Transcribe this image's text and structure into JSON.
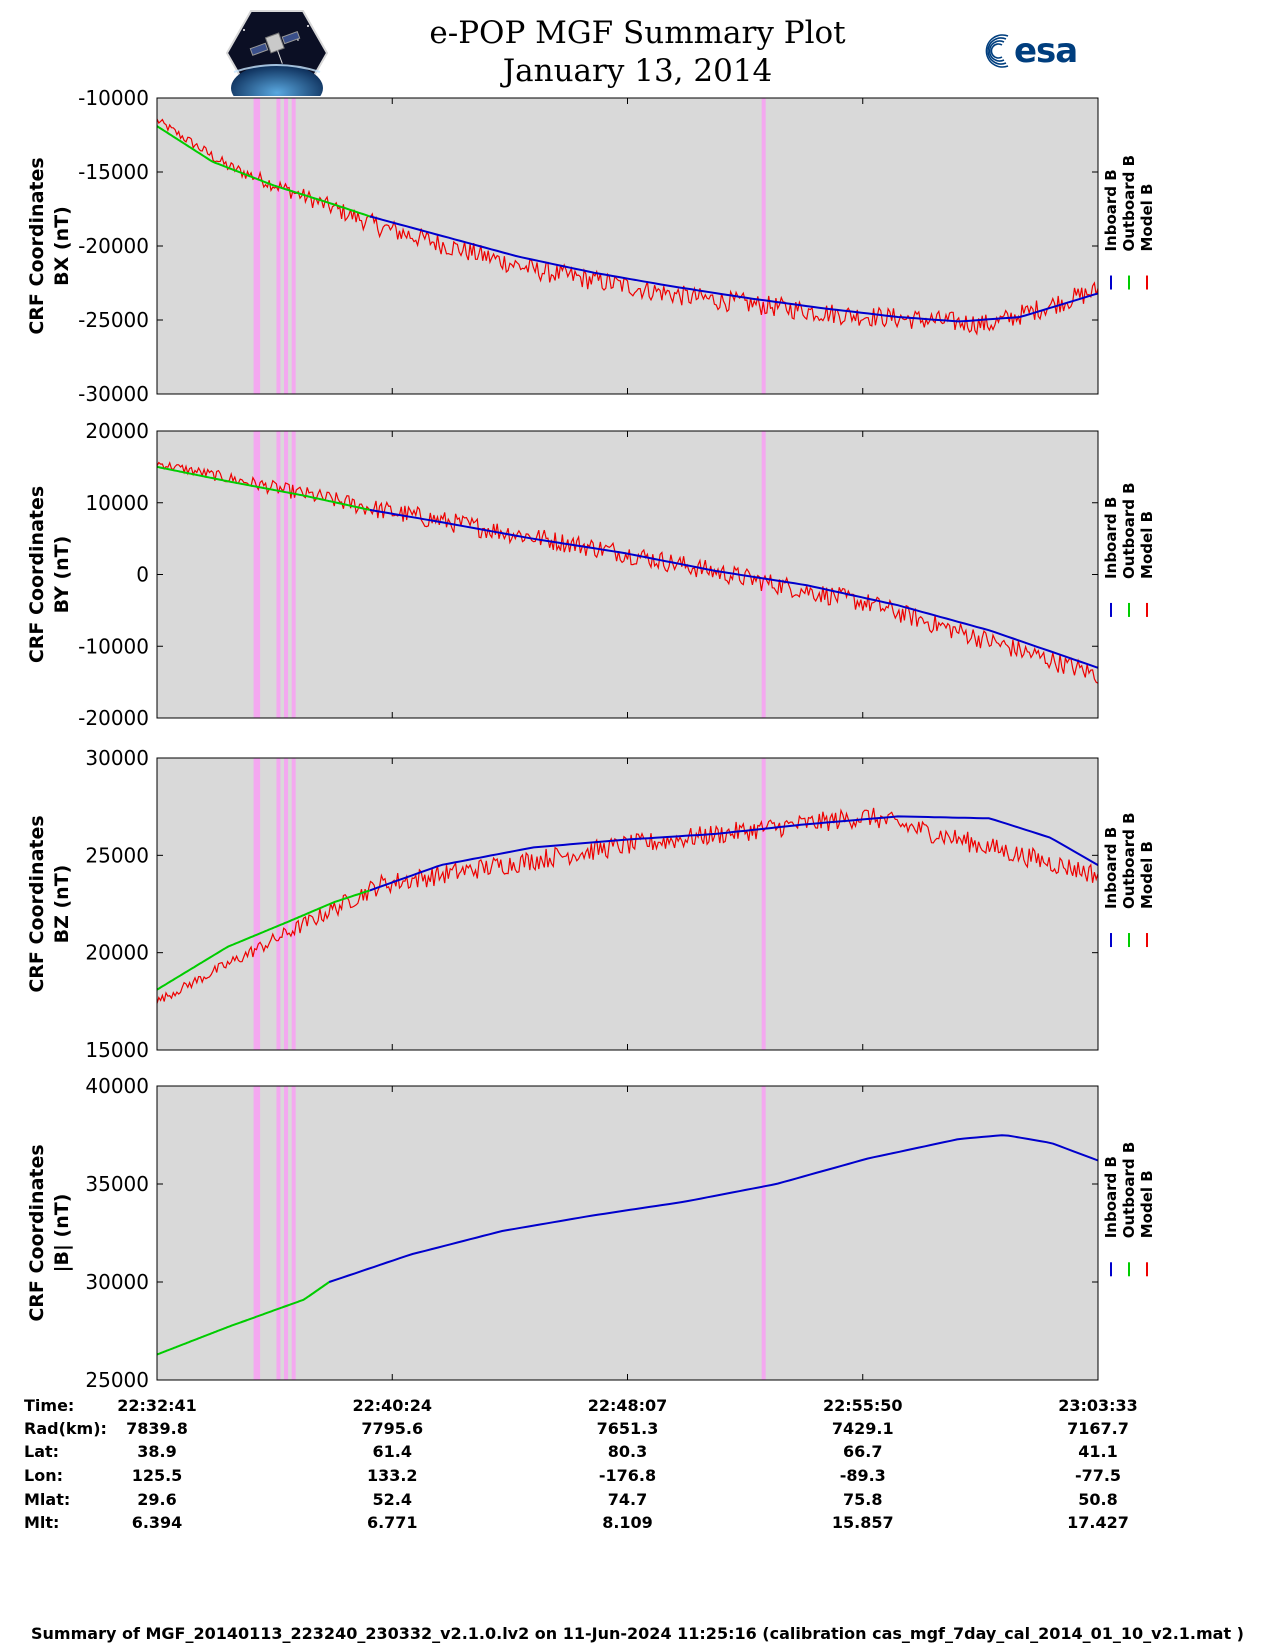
{
  "header": {
    "title_line1": "e-POP MGF Summary Plot",
    "title_line2": "January 13, 2014",
    "left_logo_name": "epop-cassiope-logo",
    "right_logo_name": "esa-logo",
    "right_logo_text": "esa",
    "right_logo_color": "#003e7e"
  },
  "legend": {
    "entries": [
      "Inboard B",
      "Outboard B",
      "Model B"
    ],
    "colors": [
      "#0000cc",
      "#00cc00",
      "#ee0000"
    ]
  },
  "chart_data": [
    {
      "type": "line",
      "ylabel_line1": "CRF Coordinates",
      "ylabel_line2": "BX (nT)",
      "ylim": [
        -30000,
        -10000
      ],
      "yticks": [
        -10000,
        -15000,
        -20000,
        -25000,
        -30000
      ],
      "x_range": [
        "22:32:41",
        "23:03:33"
      ],
      "series": [
        {
          "name": "Outboard B",
          "color": "#00cc00",
          "x": [
            "22:32:41",
            "22:34:30",
            "22:36:30",
            "22:38:30",
            "22:39:40"
          ],
          "values": [
            -11900,
            -14300,
            -15900,
            -17200,
            -18000
          ]
        },
        {
          "name": "Inboard B",
          "color": "#0000cc",
          "x": [
            "22:39:40",
            "22:42:00",
            "22:44:30",
            "22:47:00",
            "22:49:30",
            "22:52:00",
            "22:54:30",
            "22:57:00",
            "22:59:00",
            "23:01:00",
            "23:03:33"
          ],
          "values": [
            -18000,
            -19300,
            -20700,
            -21800,
            -22700,
            -23500,
            -24200,
            -24800,
            -25100,
            -24800,
            -23200
          ]
        },
        {
          "name": "Model B",
          "color": "#ee0000",
          "note": "noisy trace following inboard/outboard B",
          "x": [
            "22:32:41",
            "22:35:00",
            "22:40:00",
            "22:45:00",
            "22:50:00",
            "22:55:00",
            "23:00:00",
            "23:03:33"
          ],
          "values": [
            -11500,
            -14600,
            -18700,
            -21600,
            -23400,
            -24600,
            -25300,
            -23000
          ]
        }
      ],
      "highlight_bands": [
        "22:35:55",
        "22:36:00",
        "22:36:40",
        "22:36:55",
        "22:37:10",
        "22:52:35"
      ]
    },
    {
      "type": "line",
      "ylabel_line1": "CRF Coordinates",
      "ylabel_line2": "BY (nT)",
      "ylim": [
        -20000,
        20000
      ],
      "yticks": [
        20000,
        10000,
        0,
        -10000,
        -20000
      ],
      "x_range": [
        "22:32:41",
        "23:03:33"
      ],
      "series": [
        {
          "name": "Outboard B",
          "color": "#00cc00",
          "x": [
            "22:32:41",
            "22:35:00",
            "22:37:30",
            "22:39:40"
          ],
          "values": [
            15000,
            13000,
            11000,
            9000
          ]
        },
        {
          "name": "Inboard B",
          "color": "#0000cc",
          "x": [
            "22:39:40",
            "22:42:00",
            "22:45:00",
            "22:48:00",
            "22:51:00",
            "22:54:00",
            "22:57:00",
            "23:00:00",
            "23:03:33"
          ],
          "values": [
            9000,
            7300,
            5000,
            3000,
            500,
            -1500,
            -4300,
            -7800,
            -13000
          ]
        },
        {
          "name": "Model B",
          "color": "#ee0000",
          "note": "noisy trace following inboard/outboard B",
          "x": [
            "22:32:41",
            "22:40:00",
            "22:48:00",
            "22:56:00",
            "23:03:33"
          ],
          "values": [
            15500,
            9000,
            3000,
            -4000,
            -14000
          ]
        }
      ],
      "highlight_bands": [
        "22:35:55",
        "22:36:00",
        "22:36:40",
        "22:36:55",
        "22:37:10",
        "22:52:35"
      ]
    },
    {
      "type": "line",
      "ylabel_line1": "CRF Coordinates",
      "ylabel_line2": "BZ (nT)",
      "ylim": [
        15000,
        30000
      ],
      "yticks": [
        30000,
        25000,
        20000,
        15000
      ],
      "x_range": [
        "22:32:41",
        "23:03:33"
      ],
      "series": [
        {
          "name": "Outboard B",
          "color": "#00cc00",
          "x": [
            "22:32:41",
            "22:35:00",
            "22:37:00",
            "22:38:30",
            "22:39:40"
          ],
          "values": [
            18100,
            20300,
            21600,
            22600,
            23200
          ]
        },
        {
          "name": "Inboard B",
          "color": "#0000cc",
          "x": [
            "22:39:40",
            "22:42:00",
            "22:45:00",
            "22:48:00",
            "22:51:00",
            "22:54:00",
            "22:57:00",
            "23:00:00",
            "23:02:00",
            "23:03:33"
          ],
          "values": [
            23200,
            24500,
            25400,
            25800,
            26100,
            26600,
            27000,
            26900,
            25900,
            24500
          ]
        },
        {
          "name": "Model B",
          "color": "#ee0000",
          "note": "noisy trace following inboard/outboard B",
          "x": [
            "22:32:41",
            "22:40:00",
            "22:48:00",
            "22:56:00",
            "23:03:33"
          ],
          "values": [
            17500,
            23500,
            25500,
            27000,
            24000
          ]
        }
      ],
      "highlight_bands": [
        "22:35:55",
        "22:36:00",
        "22:36:40",
        "22:36:55",
        "22:37:10",
        "22:52:35"
      ]
    },
    {
      "type": "line",
      "ylabel_line1": "CRF Coordinates",
      "ylabel_line2": "|B| (nT)",
      "ylim": [
        25000,
        40000
      ],
      "yticks": [
        40000,
        35000,
        30000,
        25000
      ],
      "x_range": [
        "22:32:41",
        "23:03:33"
      ],
      "series": [
        {
          "name": "Outboard B",
          "color": "#00cc00",
          "x": [
            "22:32:41",
            "22:35:00",
            "22:37:30",
            "22:38:20"
          ],
          "values": [
            26300,
            27700,
            29100,
            30000
          ]
        },
        {
          "name": "Inboard B",
          "color": "#0000cc",
          "x": [
            "22:38:20",
            "22:41:00",
            "22:44:00",
            "22:47:00",
            "22:50:00",
            "22:53:00",
            "22:56:00",
            "22:59:00",
            "23:00:30",
            "23:02:00",
            "23:03:33"
          ],
          "values": [
            30000,
            31400,
            32600,
            33400,
            34100,
            35000,
            36300,
            37300,
            37500,
            37100,
            36200
          ]
        }
      ],
      "highlight_bands": [
        "22:35:55",
        "22:36:00",
        "22:36:40",
        "22:36:55",
        "22:37:10",
        "22:52:35"
      ]
    }
  ],
  "ephemeris": {
    "labels": [
      "Time:",
      "Rad(km):",
      "Lat:",
      "Lon:",
      "Mlat:",
      "Mlt:"
    ],
    "columns": [
      [
        "22:32:41",
        "7839.8",
        "38.9",
        "125.5",
        "29.6",
        "6.394"
      ],
      [
        "22:40:24",
        "7795.6",
        "61.4",
        "133.2",
        "52.4",
        "6.771"
      ],
      [
        "22:48:07",
        "7651.3",
        "80.3",
        "-176.8",
        "74.7",
        "8.109"
      ],
      [
        "22:55:50",
        "7429.1",
        "66.7",
        "-89.3",
        "75.8",
        "15.857"
      ],
      [
        "23:03:33",
        "7167.7",
        "41.1",
        "-77.5",
        "50.8",
        "17.427"
      ]
    ]
  },
  "footer": "Summary of MGF_20140113_223240_230332_v2.1.0.lv2 on 11-Jun-2024 11:25:16 (calibration cas_mgf_7day_cal_2014_01_10_v2.1.mat )",
  "colors": {
    "plot_background": "#d9d9d9",
    "highlight_band": "#f4a8f0"
  }
}
